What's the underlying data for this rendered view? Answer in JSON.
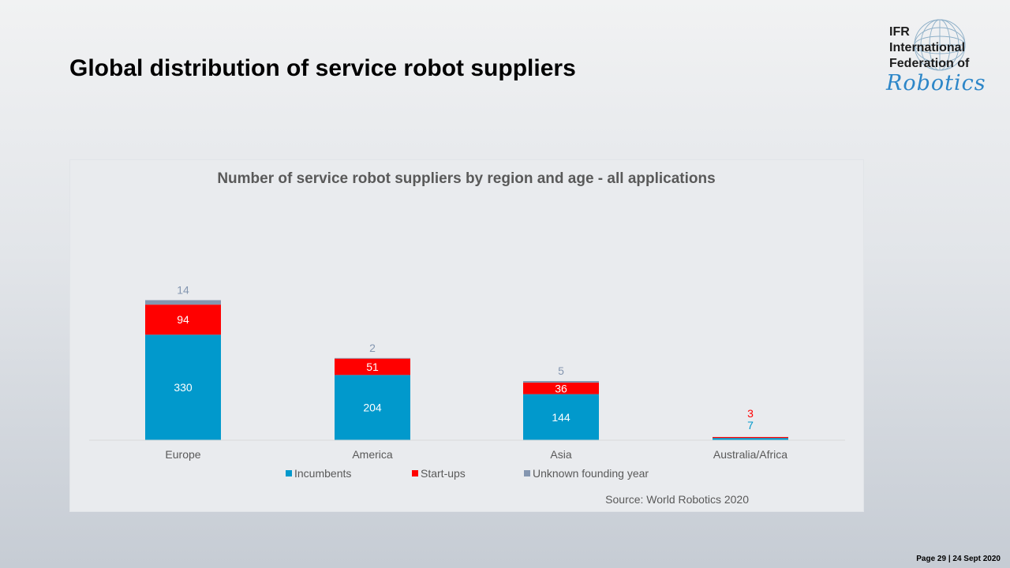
{
  "slide": {
    "title": "Global distribution of service robot suppliers",
    "footer": "Page 29 | 24 Sept 2020"
  },
  "logo": {
    "line1": "IFR",
    "line2": "International",
    "line3": "Federation of",
    "script": "Robotics",
    "icon": "globe-icon"
  },
  "colors": {
    "incumbents": "#0199cc",
    "startups": "#ff0000",
    "unknown": "#8496b0",
    "title_text": "#595959",
    "axis_text": "#595959",
    "baseline": "#d9d9d9"
  },
  "chart_data": {
    "type": "bar",
    "stacked": true,
    "title": "Number of service robot suppliers by region and age - all applications",
    "categories": [
      "Europe",
      "America",
      "Asia",
      "Australia/Africa"
    ],
    "series": [
      {
        "name": "Incumbents",
        "values": [
          330,
          204,
          144,
          7
        ]
      },
      {
        "name": "Start-ups",
        "values": [
          94,
          51,
          36,
          3
        ]
      },
      {
        "name": "Unknown founding year",
        "values": [
          14,
          2,
          5,
          0
        ]
      }
    ],
    "data_labels": [
      [
        "330",
        "204",
        "144",
        "7"
      ],
      [
        "94",
        "51",
        "36",
        "3"
      ],
      [
        "14",
        "2",
        "5",
        ""
      ]
    ],
    "xlabel": "",
    "ylabel": "",
    "ylim": [
      0,
      450
    ],
    "grid": false,
    "legend_position": "bottom",
    "source": "Source: World Robotics 2020"
  }
}
